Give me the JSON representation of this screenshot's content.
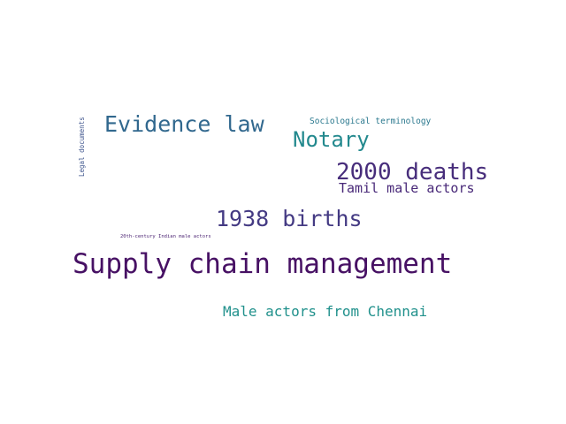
{
  "words": [
    {
      "id": "evidence_law",
      "text": "Evidence law",
      "color": "#31688e"
    },
    {
      "id": "sociological_terminology",
      "text": "Sociological terminology",
      "color": "#2a788e"
    },
    {
      "id": "notary",
      "text": "Notary",
      "color": "#23898e"
    },
    {
      "id": "legal_documents",
      "text": "Legal documents",
      "color": "#3b528b"
    },
    {
      "id": "deaths_2000",
      "text": "2000 deaths",
      "color": "#472d7b"
    },
    {
      "id": "tamil_male_actors",
      "text": "Tamil male actors",
      "color": "#482878"
    },
    {
      "id": "births_1938",
      "text": "1938 births",
      "color": "#443a83"
    },
    {
      "id": "century_20th_indian_male_actors",
      "text": "20th-century Indian male actors",
      "color": "#481f70"
    },
    {
      "id": "supply_chain_management",
      "text": "Supply chain management",
      "color": "#471164"
    },
    {
      "id": "male_actors_from_chennai",
      "text": "Male actors from Chennai",
      "color": "#21918c"
    }
  ]
}
